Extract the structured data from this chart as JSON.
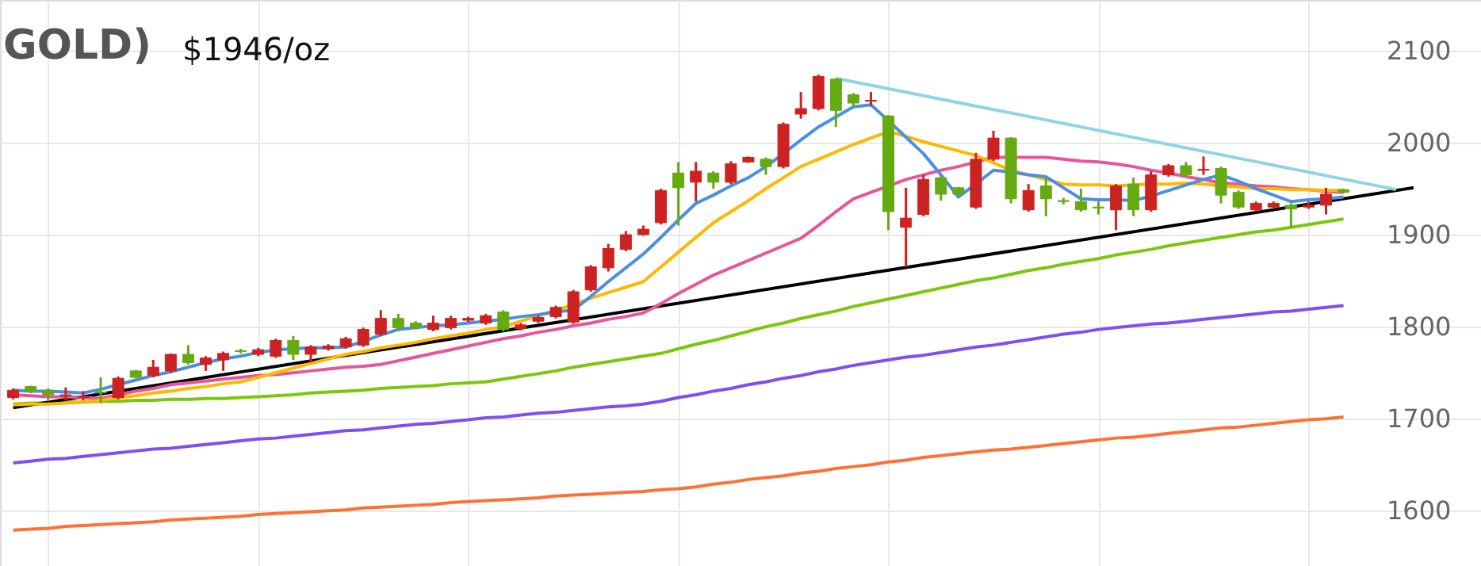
{
  "chart_data": {
    "type": "candlestick",
    "title": "GOLD)",
    "annotations": [
      "$1946/oz"
    ],
    "categories": [
      null,
      null,
      null,
      null,
      null,
      null,
      null,
      null,
      null,
      null,
      null,
      null,
      null,
      null,
      null,
      null,
      null,
      null,
      null,
      null,
      null,
      null,
      null,
      null,
      null,
      null,
      null,
      null,
      null,
      null,
      null,
      null,
      null,
      null,
      null,
      null,
      null,
      null,
      null,
      null,
      null,
      null,
      null,
      null,
      null,
      null,
      null,
      null,
      null,
      null,
      null,
      null,
      null,
      null,
      null,
      null,
      null,
      null,
      null,
      null,
      null,
      null,
      null,
      null,
      null,
      null,
      null,
      null,
      null,
      null,
      null,
      null,
      null,
      null,
      null,
      null,
      null,
      null,
      null,
      null,
      null
    ],
    "ohlc": [
      [
        1723,
        1733,
        1721,
        1731
      ],
      [
        1735,
        1736,
        1728,
        1730
      ],
      [
        1731,
        1733,
        1719,
        1726
      ],
      [
        1725,
        1734,
        1720,
        1726
      ],
      [
        1723,
        1730,
        1720,
        1724
      ],
      [
        1729,
        1745,
        1717,
        1728
      ],
      [
        1723,
        1746,
        1721,
        1744
      ],
      [
        1752,
        1753,
        1744,
        1745
      ],
      [
        1747,
        1764,
        1745,
        1756
      ],
      [
        1752,
        1771,
        1750,
        1770
      ],
      [
        1770,
        1780,
        1759,
        1761
      ],
      [
        1759,
        1768,
        1752,
        1766
      ],
      [
        1764,
        1773,
        1752,
        1771
      ],
      [
        1774,
        1776,
        1771,
        1773
      ],
      [
        1770,
        1777,
        1768,
        1775
      ],
      [
        1768,
        1787,
        1766,
        1785
      ],
      [
        1785,
        1790,
        1764,
        1770
      ],
      [
        1770,
        1780,
        1761,
        1778
      ],
      [
        1776,
        1781,
        1774,
        1779
      ],
      [
        1778,
        1789,
        1776,
        1787
      ],
      [
        1780,
        1799,
        1778,
        1797
      ],
      [
        1792,
        1818,
        1790,
        1809
      ],
      [
        1809,
        1814,
        1795,
        1799
      ],
      [
        1804,
        1806,
        1797,
        1799
      ],
      [
        1797,
        1812,
        1795,
        1804
      ],
      [
        1799,
        1812,
        1797,
        1809
      ],
      [
        1807,
        1811,
        1805,
        1809
      ],
      [
        1804,
        1814,
        1802,
        1812
      ],
      [
        1816,
        1818,
        1795,
        1797
      ],
      [
        1798,
        1804,
        1796,
        1802
      ],
      [
        1806,
        1812,
        1804,
        1810
      ],
      [
        1811,
        1823,
        1809,
        1821
      ],
      [
        1805,
        1840,
        1803,
        1838
      ],
      [
        1840,
        1867,
        1838,
        1865
      ],
      [
        1864,
        1890,
        1860,
        1885
      ],
      [
        1884,
        1904,
        1882,
        1900
      ],
      [
        1900,
        1910,
        1899,
        1906
      ],
      [
        1913,
        1950,
        1911,
        1948
      ],
      [
        1967,
        1979,
        1910,
        1951
      ],
      [
        1957,
        1979,
        1936,
        1969
      ],
      [
        1967,
        1969,
        1950,
        1957
      ],
      [
        1957,
        1980,
        1955,
        1977
      ],
      [
        1979,
        1985,
        1978,
        1984
      ],
      [
        1982,
        1984,
        1965,
        1974
      ],
      [
        1974,
        2022,
        1972,
        2020
      ],
      [
        2031,
        2055,
        2026,
        2037
      ],
      [
        2037,
        2074,
        2035,
        2072
      ],
      [
        2069,
        2070,
        2017,
        2035
      ],
      [
        2052,
        2054,
        2040,
        2043
      ],
      [
        2045,
        2055,
        2040,
        2046
      ],
      [
        2029,
        2030,
        1905,
        1925
      ],
      [
        1908,
        1951,
        1865,
        1918
      ],
      [
        1922,
        1965,
        1920,
        1960
      ],
      [
        1962,
        1964,
        1937,
        1944
      ],
      [
        1951,
        1952,
        1943,
        1944
      ],
      [
        1930,
        1989,
        1928,
        1982
      ],
      [
        1982,
        2013,
        1980,
        2005
      ],
      [
        2005,
        2006,
        1934,
        1939
      ],
      [
        1927,
        1955,
        1925,
        1948
      ],
      [
        1953,
        1962,
        1920,
        1939
      ],
      [
        1937,
        1940,
        1933,
        1936
      ],
      [
        1936,
        1950,
        1925,
        1927
      ],
      [
        1930,
        1936,
        1922,
        1929
      ],
      [
        1927,
        1955,
        1905,
        1953
      ],
      [
        1955,
        1962,
        1920,
        1927
      ],
      [
        1927,
        1969,
        1925,
        1965
      ],
      [
        1965,
        1977,
        1963,
        1975
      ],
      [
        1975,
        1979,
        1963,
        1965
      ],
      [
        1970,
        1985,
        1965,
        1971
      ],
      [
        1972,
        1974,
        1934,
        1943
      ],
      [
        1946,
        1948,
        1928,
        1930
      ],
      [
        1927,
        1936,
        1925,
        1934
      ],
      [
        1930,
        1936,
        1928,
        1934
      ],
      [
        1932,
        1934,
        1908,
        1928
      ],
      [
        1930,
        1936,
        1928,
        1932
      ],
      [
        1932,
        1951,
        1922,
        1944
      ],
      [
        1949,
        1950,
        1945,
        1946
      ],
      null,
      null,
      null,
      null
    ],
    "colors": [
      "#cc2222",
      "#66aa11",
      "#66aa11",
      "#cc2222",
      "#cc2222",
      "#66aa11",
      "#cc2222",
      "#66aa11",
      "#cc2222",
      "#cc2222",
      "#66aa11",
      "#cc2222",
      "#cc2222",
      "#66aa11",
      "#cc2222",
      "#cc2222",
      "#66aa11",
      "#cc2222",
      "#cc2222",
      "#cc2222",
      "#cc2222",
      "#cc2222",
      "#66aa11",
      "#66aa11",
      "#cc2222",
      "#cc2222",
      "#cc2222",
      "#cc2222",
      "#66aa11",
      "#cc2222",
      "#cc2222",
      "#cc2222",
      "#cc2222",
      "#cc2222",
      "#cc2222",
      "#cc2222",
      "#cc2222",
      "#cc2222",
      "#66aa11",
      "#cc2222",
      "#66aa11",
      "#cc2222",
      "#cc2222",
      "#66aa11",
      "#cc2222",
      "#cc2222",
      "#cc2222",
      "#66aa11",
      "#66aa11",
      "#cc2222",
      "#66aa11",
      "#cc2222",
      "#cc2222",
      "#66aa11",
      "#66aa11",
      "#cc2222",
      "#cc2222",
      "#66aa11",
      "#cc2222",
      "#66aa11",
      "#66aa11",
      "#66aa11",
      "#66aa11",
      "#cc2222",
      "#66aa11",
      "#cc2222",
      "#cc2222",
      "#66aa11",
      "#cc2222",
      "#66aa11",
      "#66aa11",
      "#cc2222",
      "#cc2222",
      "#66aa11",
      "#cc2222",
      "#cc2222",
      "#66aa11",
      null,
      null,
      null,
      null
    ],
    "series": [
      {
        "type": "line",
        "color": "#ff7035",
        "values": [
          1579,
          1580,
          1581,
          1583,
          1584,
          1585,
          1586,
          1587,
          1588,
          1590,
          1591,
          1592,
          1593,
          1594,
          1596,
          1597,
          1598,
          1599,
          1600,
          1601,
          1603,
          1604,
          1605,
          1606,
          1607,
          1609,
          1610,
          1611,
          1612,
          1613,
          1614,
          1616,
          1617,
          1618,
          1619,
          1620,
          1621,
          1623,
          1624,
          1626,
          1629,
          1631,
          1634,
          1636,
          1638,
          1641,
          1643,
          1646,
          1648,
          1650,
          1653,
          1655,
          1658,
          1660,
          1662,
          1664,
          1666,
          1667,
          1669,
          1671,
          1673,
          1675,
          1677,
          1679,
          1680,
          1682,
          1684,
          1686,
          1688,
          1690,
          1691,
          1693,
          1695,
          1697,
          1699,
          1700,
          1702,
          null,
          null,
          null,
          null
        ]
      },
      {
        "type": "line",
        "color": "#7f4ff0",
        "values": [
          1652,
          1654,
          1656,
          1657,
          1659,
          1661,
          1663,
          1665,
          1667,
          1668,
          1670,
          1672,
          1674,
          1676,
          1678,
          1679,
          1681,
          1683,
          1685,
          1687,
          1688,
          1690,
          1692,
          1694,
          1695,
          1697,
          1699,
          1701,
          1702,
          1704,
          1706,
          1707,
          1709,
          1711,
          1713,
          1714,
          1716,
          1719,
          1723,
          1726,
          1730,
          1733,
          1737,
          1740,
          1744,
          1747,
          1751,
          1754,
          1758,
          1761,
          1764,
          1767,
          1769,
          1772,
          1775,
          1778,
          1780,
          1783,
          1786,
          1789,
          1792,
          1794,
          1797,
          1799,
          1801,
          1803,
          1804,
          1806,
          1808,
          1810,
          1812,
          1814,
          1816,
          1817,
          1819,
          1821,
          1823,
          null,
          null,
          null,
          null
        ]
      },
      {
        "type": "line",
        "color": "#7ac70c",
        "values": [
          1716,
          1717,
          1717,
          1718,
          1718,
          1719,
          1719,
          1720,
          1720,
          1721,
          1721,
          1722,
          1722,
          1723,
          1724,
          1725,
          1726,
          1728,
          1729,
          1730,
          1731,
          1733,
          1734,
          1735,
          1736,
          1738,
          1739,
          1740,
          1743,
          1746,
          1749,
          1752,
          1756,
          1759,
          1762,
          1765,
          1768,
          1771,
          1776,
          1781,
          1785,
          1790,
          1795,
          1800,
          1804,
          1809,
          1813,
          1817,
          1822,
          1826,
          1830,
          1834,
          1838,
          1842,
          1846,
          1850,
          1853,
          1857,
          1861,
          1864,
          1868,
          1871,
          1874,
          1878,
          1881,
          1884,
          1888,
          1891,
          1894,
          1897,
          1900,
          1903,
          1905,
          1908,
          1911,
          1914,
          1917,
          null,
          null,
          null,
          null
        ]
      },
      {
        "type": "line",
        "color": "#000000",
        "values": [
          1712,
          null,
          null,
          null,
          null,
          null,
          null,
          null,
          null,
          null,
          null,
          null,
          null,
          null,
          null,
          null,
          null,
          null,
          null,
          null,
          null,
          null,
          null,
          null,
          null,
          null,
          null,
          null,
          null,
          null,
          null,
          null,
          null,
          null,
          null,
          null,
          null,
          null,
          null,
          null,
          null,
          null,
          null,
          null,
          null,
          null,
          null,
          null,
          null,
          null,
          null,
          null,
          null,
          null,
          null,
          null,
          null,
          null,
          null,
          null,
          null,
          null,
          null,
          null,
          null,
          null,
          null,
          null,
          null,
          null,
          null,
          null,
          null,
          null,
          null,
          null,
          null,
          null,
          null,
          null,
          1951
        ]
      },
      {
        "type": "line",
        "color": "#e8559a",
        "values": [
          1726,
          1725,
          1724,
          1724,
          1723,
          1722,
          1726,
          1730,
          1733,
          1737,
          1739,
          1741,
          1743,
          1745,
          1747,
          1748,
          1750,
          1752,
          1754,
          1756,
          1757,
          1759,
          1763,
          1767,
          1771,
          1775,
          1779,
          1783,
          1787,
          1790,
          1794,
          1797,
          1801,
          1804,
          1808,
          1811,
          1815,
          1825,
          1836,
          1846,
          1856,
          1864,
          1872,
          1880,
          1888,
          1896,
          1910,
          1925,
          1939,
          1946,
          1953,
          1960,
          1965,
          1970,
          1974,
          1979,
          1984,
          1984,
          1984,
          1984,
          1982,
          1980,
          1979,
          1977,
          1974,
          1970,
          1967,
          1963,
          1960,
          1956,
          1955,
          1953,
          1952,
          1950,
          1949,
          1947,
          1946,
          null,
          null,
          null,
          null
        ]
      },
      {
        "type": "line",
        "color": "#ffb800",
        "values": [
          1715,
          1716,
          1716,
          1717,
          1718,
          1720,
          1723,
          1725,
          1728,
          1730,
          1733,
          1735,
          1738,
          1740,
          1745,
          1750,
          1755,
          1760,
          1765,
          1770,
          1773,
          1777,
          1780,
          1783,
          1787,
          1790,
          1793,
          1797,
          1800,
          1806,
          1812,
          1818,
          1824,
          1831,
          1837,
          1843,
          1849,
          1865,
          1881,
          1897,
          1913,
          1925,
          1937,
          1950,
          1962,
          1974,
          1982,
          1990,
          1998,
          2005,
          2012,
          2007,
          2001,
          1996,
          1991,
          1986,
          1978,
          1970,
          1965,
          1960,
          1955,
          1954,
          1954,
          1953,
          1954,
          1955,
          1955,
          1956,
          1955,
          1953,
          1952,
          1950,
          1950,
          1949,
          1949,
          1948,
          1948,
          null,
          null,
          null,
          null
        ]
      },
      {
        "type": "line",
        "color": "#4a90e2",
        "values": [
          1731,
          1730,
          1730,
          1729,
          1728,
          1732,
          1737,
          1742,
          1747,
          1751,
          1756,
          1761,
          1765,
          1768,
          1772,
          1775,
          1776,
          1777,
          1777,
          1778,
          1784,
          1791,
          1797,
          1799,
          1801,
          1802,
          1804,
          1806,
          1808,
          1811,
          1813,
          1816,
          1818,
          1833,
          1849,
          1864,
          1879,
          1897,
          1916,
          1934,
          1943,
          1953,
          1962,
          1974,
          1988,
          2003,
          2017,
          2028,
          2039,
          2041,
          2024,
          2006,
          1988,
          1965,
          1941,
          1955,
          1970,
          1968,
          1965,
          1963,
          1951,
          1939,
          1938,
          1938,
          1937,
          1942,
          1948,
          1954,
          1960,
          1965,
          1958,
          1950,
          1943,
          1936,
          1938,
          1939,
          1941,
          null,
          null,
          null,
          null
        ]
      },
      {
        "type": "line",
        "color": "#8fd3e8",
        "values": [
          null,
          null,
          null,
          null,
          null,
          null,
          null,
          null,
          null,
          null,
          null,
          null,
          null,
          null,
          null,
          null,
          null,
          null,
          null,
          null,
          null,
          null,
          null,
          null,
          null,
          null,
          null,
          null,
          null,
          null,
          null,
          null,
          null,
          null,
          null,
          null,
          null,
          null,
          null,
          null,
          null,
          null,
          null,
          null,
          null,
          null,
          null,
          2070,
          null,
          null,
          null,
          null,
          null,
          null,
          null,
          null,
          null,
          null,
          null,
          null,
          null,
          null,
          null,
          null,
          null,
          null,
          null,
          null,
          null,
          null,
          null,
          null,
          null,
          null,
          null,
          null,
          null,
          null,
          null,
          1949,
          null
        ]
      }
    ],
    "ylim": [
      1540,
      2155
    ],
    "yticks": [
      1600,
      1700,
      1800,
      1900,
      2000,
      2100
    ],
    "grid": true,
    "tick_labels": "y"
  }
}
